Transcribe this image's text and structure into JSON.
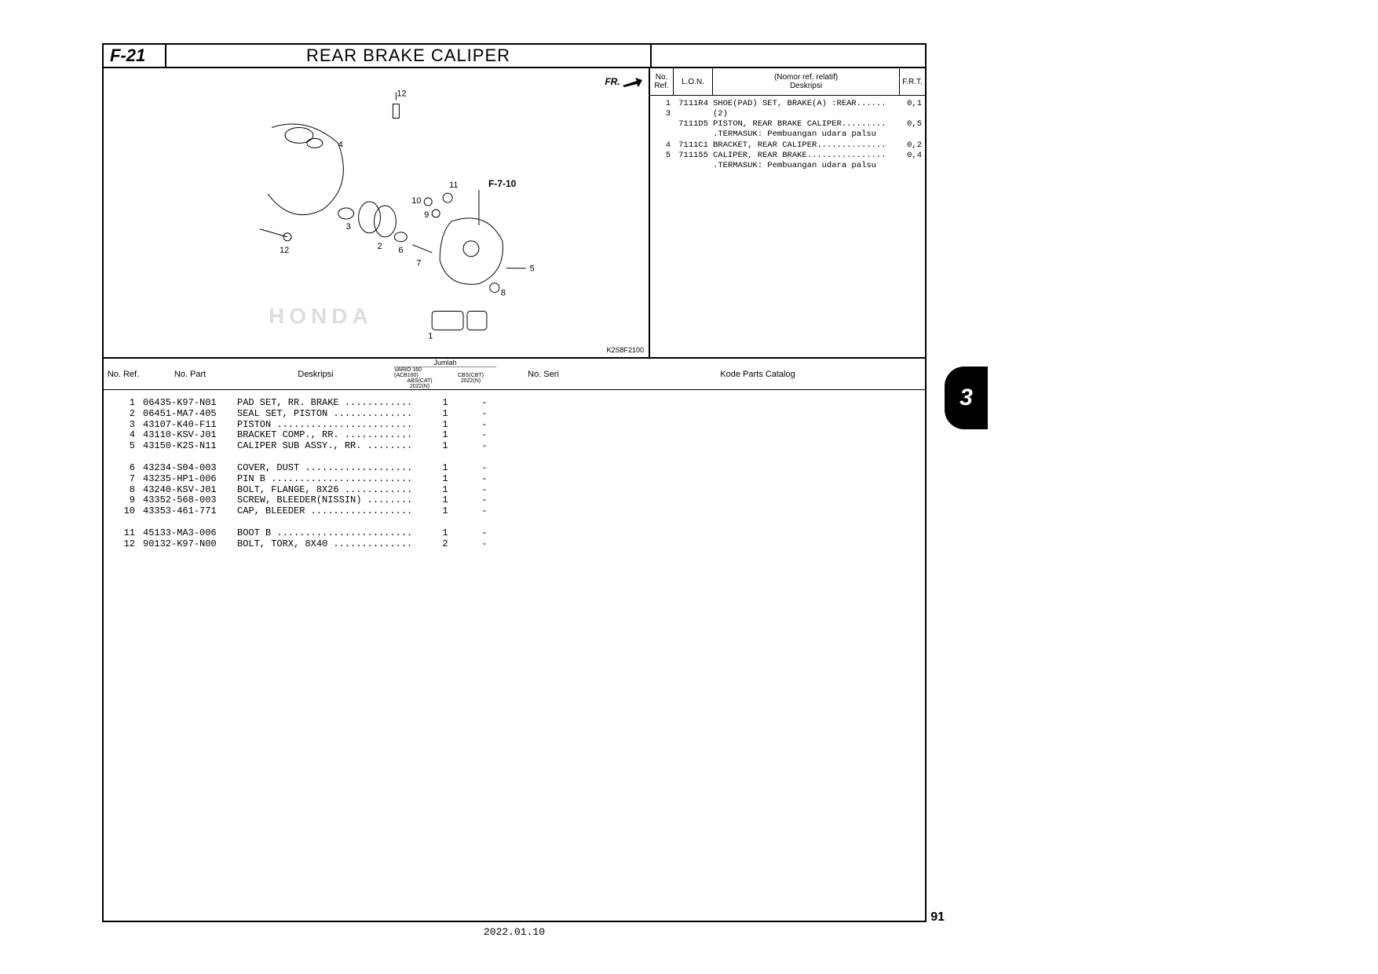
{
  "section_code": "F-21",
  "section_title": "REAR BRAKE CALIPER",
  "fr_label": "FR.",
  "diagram_cross_ref": "F-7-10",
  "diagram_code": "K2S8F2100",
  "watermark": "HONDA",
  "side_table": {
    "headers": {
      "ref": "No.\nRef.",
      "lon": "L.O.N.",
      "desc_top": "(Nomor ref. relatif)",
      "desc_bottom": "Deskripsi",
      "frt": "F.R.T."
    },
    "rows": [
      {
        "ref": "1",
        "lon": "7111R4",
        "desc": "SHOE(PAD) SET, BRAKE(A) :REAR......",
        "frt": "0,1"
      },
      {
        "ref": "3",
        "lon": "",
        "desc": "(2)",
        "frt": ""
      },
      {
        "ref": "",
        "lon": "7111D5",
        "desc": "PISTON, REAR BRAKE CALIPER.........",
        "frt": "0,5"
      },
      {
        "ref": "",
        "lon": "",
        "desc": ".TERMASUK: Pembuangan udara palsu",
        "frt": ""
      },
      {
        "ref": "4",
        "lon": "7111C1",
        "desc": "BRACKET, REAR CALIPER..............",
        "frt": "0,2"
      },
      {
        "ref": "5",
        "lon": "711155",
        "desc": "CALIPER, REAR BRAKE................",
        "frt": "0,4"
      },
      {
        "ref": "",
        "lon": "",
        "desc": ".TERMASUK: Pembuangan udara palsu",
        "frt": ""
      }
    ]
  },
  "parts_table": {
    "headers": {
      "ref": "No.\nRef.",
      "part": "No. Part",
      "desc": "Deskripsi",
      "jumlah": "Jumlah",
      "jumlah_sub": [
        {
          "l1": "VARIO 160 (ACB160)",
          "l2": "ABS(CAT)",
          "l3": "2022(N)"
        },
        {
          "l1": "",
          "l2": "CBS(CBT)",
          "l3": "2022(N)"
        }
      ],
      "seri": "No. Seri",
      "kode": "Kode Parts Catalog"
    },
    "groups": [
      [
        {
          "ref": "1",
          "num": "06435-K97-N01",
          "desc": "PAD SET, RR. BRAKE ............",
          "q1": "1",
          "q2": "-"
        },
        {
          "ref": "2",
          "num": "06451-MA7-405",
          "desc": "SEAL SET, PISTON ..............",
          "q1": "1",
          "q2": "-"
        },
        {
          "ref": "3",
          "num": "43107-K40-F11",
          "desc": "PISTON ........................",
          "q1": "1",
          "q2": "-"
        },
        {
          "ref": "4",
          "num": "43110-KSV-J01",
          "desc": "BRACKET COMP., RR. ............",
          "q1": "1",
          "q2": "-"
        },
        {
          "ref": "5",
          "num": "43150-K2S-N11",
          "desc": "CALIPER SUB ASSY., RR. ........",
          "q1": "1",
          "q2": "-"
        }
      ],
      [
        {
          "ref": "6",
          "num": "43234-S04-003",
          "desc": "COVER, DUST ...................",
          "q1": "1",
          "q2": "-"
        },
        {
          "ref": "7",
          "num": "43235-HP1-006",
          "desc": "PIN B .........................",
          "q1": "1",
          "q2": "-"
        },
        {
          "ref": "8",
          "num": "43240-KSV-J01",
          "desc": "BOLT, FLANGE, 8X26 ............",
          "q1": "1",
          "q2": "-"
        },
        {
          "ref": "9",
          "num": "43352-568-003",
          "desc": "SCREW, BLEEDER(NISSIN) ........",
          "q1": "1",
          "q2": "-"
        },
        {
          "ref": "10",
          "num": "43353-461-771",
          "desc": "CAP, BLEEDER ..................",
          "q1": "1",
          "q2": "-"
        }
      ],
      [
        {
          "ref": "11",
          "num": "45133-MA3-006",
          "desc": "BOOT B ........................",
          "q1": "1",
          "q2": "-"
        },
        {
          "ref": "12",
          "num": "90132-K97-N00",
          "desc": "BOLT, TORX, 8X40 ..............",
          "q1": "2",
          "q2": "-"
        }
      ]
    ]
  },
  "date": "2022.01.10",
  "page_num": "91",
  "side_tab": "3",
  "callouts": [
    "1",
    "2",
    "3",
    "4",
    "5",
    "6",
    "7",
    "8",
    "9",
    "10",
    "11",
    "12"
  ]
}
